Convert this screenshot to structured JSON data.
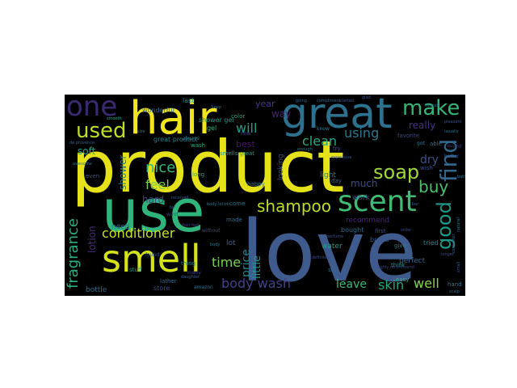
{
  "wordcloud": {
    "background": "#000000",
    "words": [
      {
        "text": "product",
        "color": "#e6e21a"
      },
      {
        "text": "love",
        "color": "#3f5b8e"
      },
      {
        "text": "use",
        "color": "#2fb47c"
      },
      {
        "text": "hair",
        "color": "#f1e51d"
      },
      {
        "text": "great",
        "color": "#2c728e"
      },
      {
        "text": "smell",
        "color": "#d4e21a"
      },
      {
        "text": "scent",
        "color": "#3ebc74"
      },
      {
        "text": "shampoo",
        "color": "#bddf26"
      },
      {
        "text": "one",
        "color": "#3b2a72"
      },
      {
        "text": "make",
        "color": "#34b679"
      },
      {
        "text": "used",
        "color": "#bddf26"
      },
      {
        "text": "find",
        "color": "#31688e"
      },
      {
        "text": "good",
        "color": "#1f9a8a"
      },
      {
        "text": "soap",
        "color": "#a0da39"
      },
      {
        "text": "buy",
        "color": "#4ac16d"
      },
      {
        "text": "body wash",
        "color": "#43418a"
      },
      {
        "text": "fragrance",
        "color": "#29af7f"
      },
      {
        "text": "conditioner",
        "color": "#c8e020"
      },
      {
        "text": "clean",
        "color": "#25ab82"
      },
      {
        "text": "nice",
        "color": "#35b779"
      },
      {
        "text": "feel",
        "color": "#73d056"
      },
      {
        "text": "time",
        "color": "#7ad151"
      },
      {
        "text": "skin",
        "color": "#22a785"
      },
      {
        "text": "well",
        "color": "#86d549"
      },
      {
        "text": "leave",
        "color": "#38b977"
      },
      {
        "text": "will",
        "color": "#1f9e89"
      },
      {
        "text": "using",
        "color": "#2a788e"
      },
      {
        "text": "dry",
        "color": "#3b528b"
      },
      {
        "text": "price",
        "color": "#26828e"
      },
      {
        "text": "little",
        "color": "#1e9b8a"
      },
      {
        "text": "lotion",
        "color": "#472c7a"
      },
      {
        "text": "soft",
        "color": "#22a785"
      },
      {
        "text": "shower",
        "color": "#29798e"
      },
      {
        "text": "hard",
        "color": "#423f85"
      },
      {
        "text": "really",
        "color": "#46327e"
      },
      {
        "text": "much",
        "color": "#3e4c8a"
      },
      {
        "text": "way",
        "color": "#482475"
      },
      {
        "text": "year",
        "color": "#443b84"
      },
      {
        "text": "best",
        "color": "#481467"
      },
      {
        "text": "light",
        "color": "#277f8e"
      },
      {
        "text": "looking",
        "color": "#3b528b"
      },
      {
        "text": "bottle",
        "color": "#2d708e"
      },
      {
        "text": "need",
        "color": "#2c728e"
      },
      {
        "text": "work",
        "color": "#3b528b"
      },
      {
        "text": "recommend",
        "color": "#482878"
      },
      {
        "text": "lot",
        "color": "#32648e"
      },
      {
        "text": "water",
        "color": "#1fa088"
      },
      {
        "text": "brand",
        "color": "#37598c"
      },
      {
        "text": "perfect",
        "color": "#30698e"
      },
      {
        "text": "bought",
        "color": "#2d708e"
      },
      {
        "text": "tried",
        "color": "#26828e"
      },
      {
        "text": "store",
        "color": "#3e4a89"
      },
      {
        "text": "smells great",
        "color": "#1f9e89"
      },
      {
        "text": "great product",
        "color": "#24868e"
      },
      {
        "text": "shower gel",
        "color": "#1f968b"
      },
      {
        "text": "last",
        "color": "#20928c"
      },
      {
        "text": "gel",
        "color": "#31b57b"
      },
      {
        "text": "wonderful",
        "color": "#31678e"
      },
      {
        "text": "wash",
        "color": "#29af7f"
      },
      {
        "text": "come",
        "color": "#2a778e"
      },
      {
        "text": "made",
        "color": "#2f6c8e"
      },
      {
        "text": "happy",
        "color": "#2c738e"
      },
      {
        "text": "long",
        "color": "#20a386"
      },
      {
        "text": "color",
        "color": "#27ad81"
      },
      {
        "text": "favorite",
        "color": "#3f4889"
      },
      {
        "text": "able",
        "color": "#2d708e"
      },
      {
        "text": "wish",
        "color": "#3c4f8a"
      },
      {
        "text": "even",
        "color": "#3a548c"
      },
      {
        "text": "stuff",
        "color": "#1f9a8a"
      },
      {
        "text": "thing",
        "color": "#25848e"
      },
      {
        "text": "lather",
        "color": "#2e6e8e"
      },
      {
        "text": "try",
        "color": "#3d4d8a"
      },
      {
        "text": "give",
        "color": "#24878e"
      },
      {
        "text": "think",
        "color": "#1f958b"
      },
      {
        "text": "look",
        "color": "#39568c"
      },
      {
        "text": "easy",
        "color": "#37b878"
      },
      {
        "text": "hand",
        "color": "#2b758e"
      },
      {
        "text": "first",
        "color": "#3d4e8a"
      },
      {
        "text": "day",
        "color": "#2f6b8e"
      },
      {
        "text": "still",
        "color": "#2e6f8e"
      },
      {
        "text": "many",
        "color": "#443a83"
      },
      {
        "text": "now",
        "color": "#404688"
      },
      {
        "text": "got",
        "color": "#297b8e"
      },
      {
        "text": "better",
        "color": "#365c8d"
      },
      {
        "text": "buying",
        "color": "#424186"
      },
      {
        "text": "amazon",
        "color": "#2a768e"
      },
      {
        "text": "found",
        "color": "#3a538b"
      },
      {
        "text": "know",
        "color": "#287d8e"
      },
      {
        "text": "definitely",
        "color": "#3d4d8a"
      },
      {
        "text": "want",
        "color": "#404588"
      },
      {
        "text": "without",
        "color": "#3e4a89"
      },
      {
        "text": "always",
        "color": "#2a778e"
      },
      {
        "text": "highly recommend",
        "color": "#404688"
      },
      {
        "text": "received",
        "color": "#365d8d"
      },
      {
        "text": "perfume",
        "color": "#3a538b"
      },
      {
        "text": "de provence",
        "color": "#33638d"
      },
      {
        "text": "body lotion",
        "color": "#2b748e"
      },
      {
        "text": "small",
        "color": "#3b528b"
      },
      {
        "text": "natural",
        "color": "#2d708e"
      },
      {
        "text": "daughter",
        "color": "#355e8d"
      },
      {
        "text": "expensive",
        "color": "#39568c"
      },
      {
        "text": "enough",
        "color": "#287c8e"
      },
      {
        "text": "keep",
        "color": "#31678e"
      },
      {
        "text": "hair feel",
        "color": "#3f4889"
      },
      {
        "text": "awesome",
        "color": "#2d718e"
      },
      {
        "text": "smooth",
        "color": "#1fa187"
      },
      {
        "text": "body",
        "color": "#2b758e"
      },
      {
        "text": "order",
        "color": "#3e4989"
      },
      {
        "text": "scalp",
        "color": "#2f6c8e"
      },
      {
        "text": "bar",
        "color": "#306a8e"
      },
      {
        "text": "longer",
        "color": "#3e4989"
      },
      {
        "text": "usually",
        "color": "#2d708e"
      },
      {
        "text": "container",
        "color": "#2f6b8e"
      },
      {
        "text": "pleasant",
        "color": "#3a548c"
      },
      {
        "text": "compliment",
        "color": "#2e6e8e"
      },
      {
        "text": "glad",
        "color": "#3c4f8a"
      },
      {
        "text": "far",
        "color": "#31668e"
      },
      {
        "text": "bath",
        "color": "#2a788e"
      },
      {
        "text": "size",
        "color": "#2c728e"
      },
      {
        "text": "going",
        "color": "#30698e"
      },
      {
        "text": "started",
        "color": "#39558c"
      },
      {
        "text": "overall",
        "color": "#2a778e"
      }
    ]
  }
}
